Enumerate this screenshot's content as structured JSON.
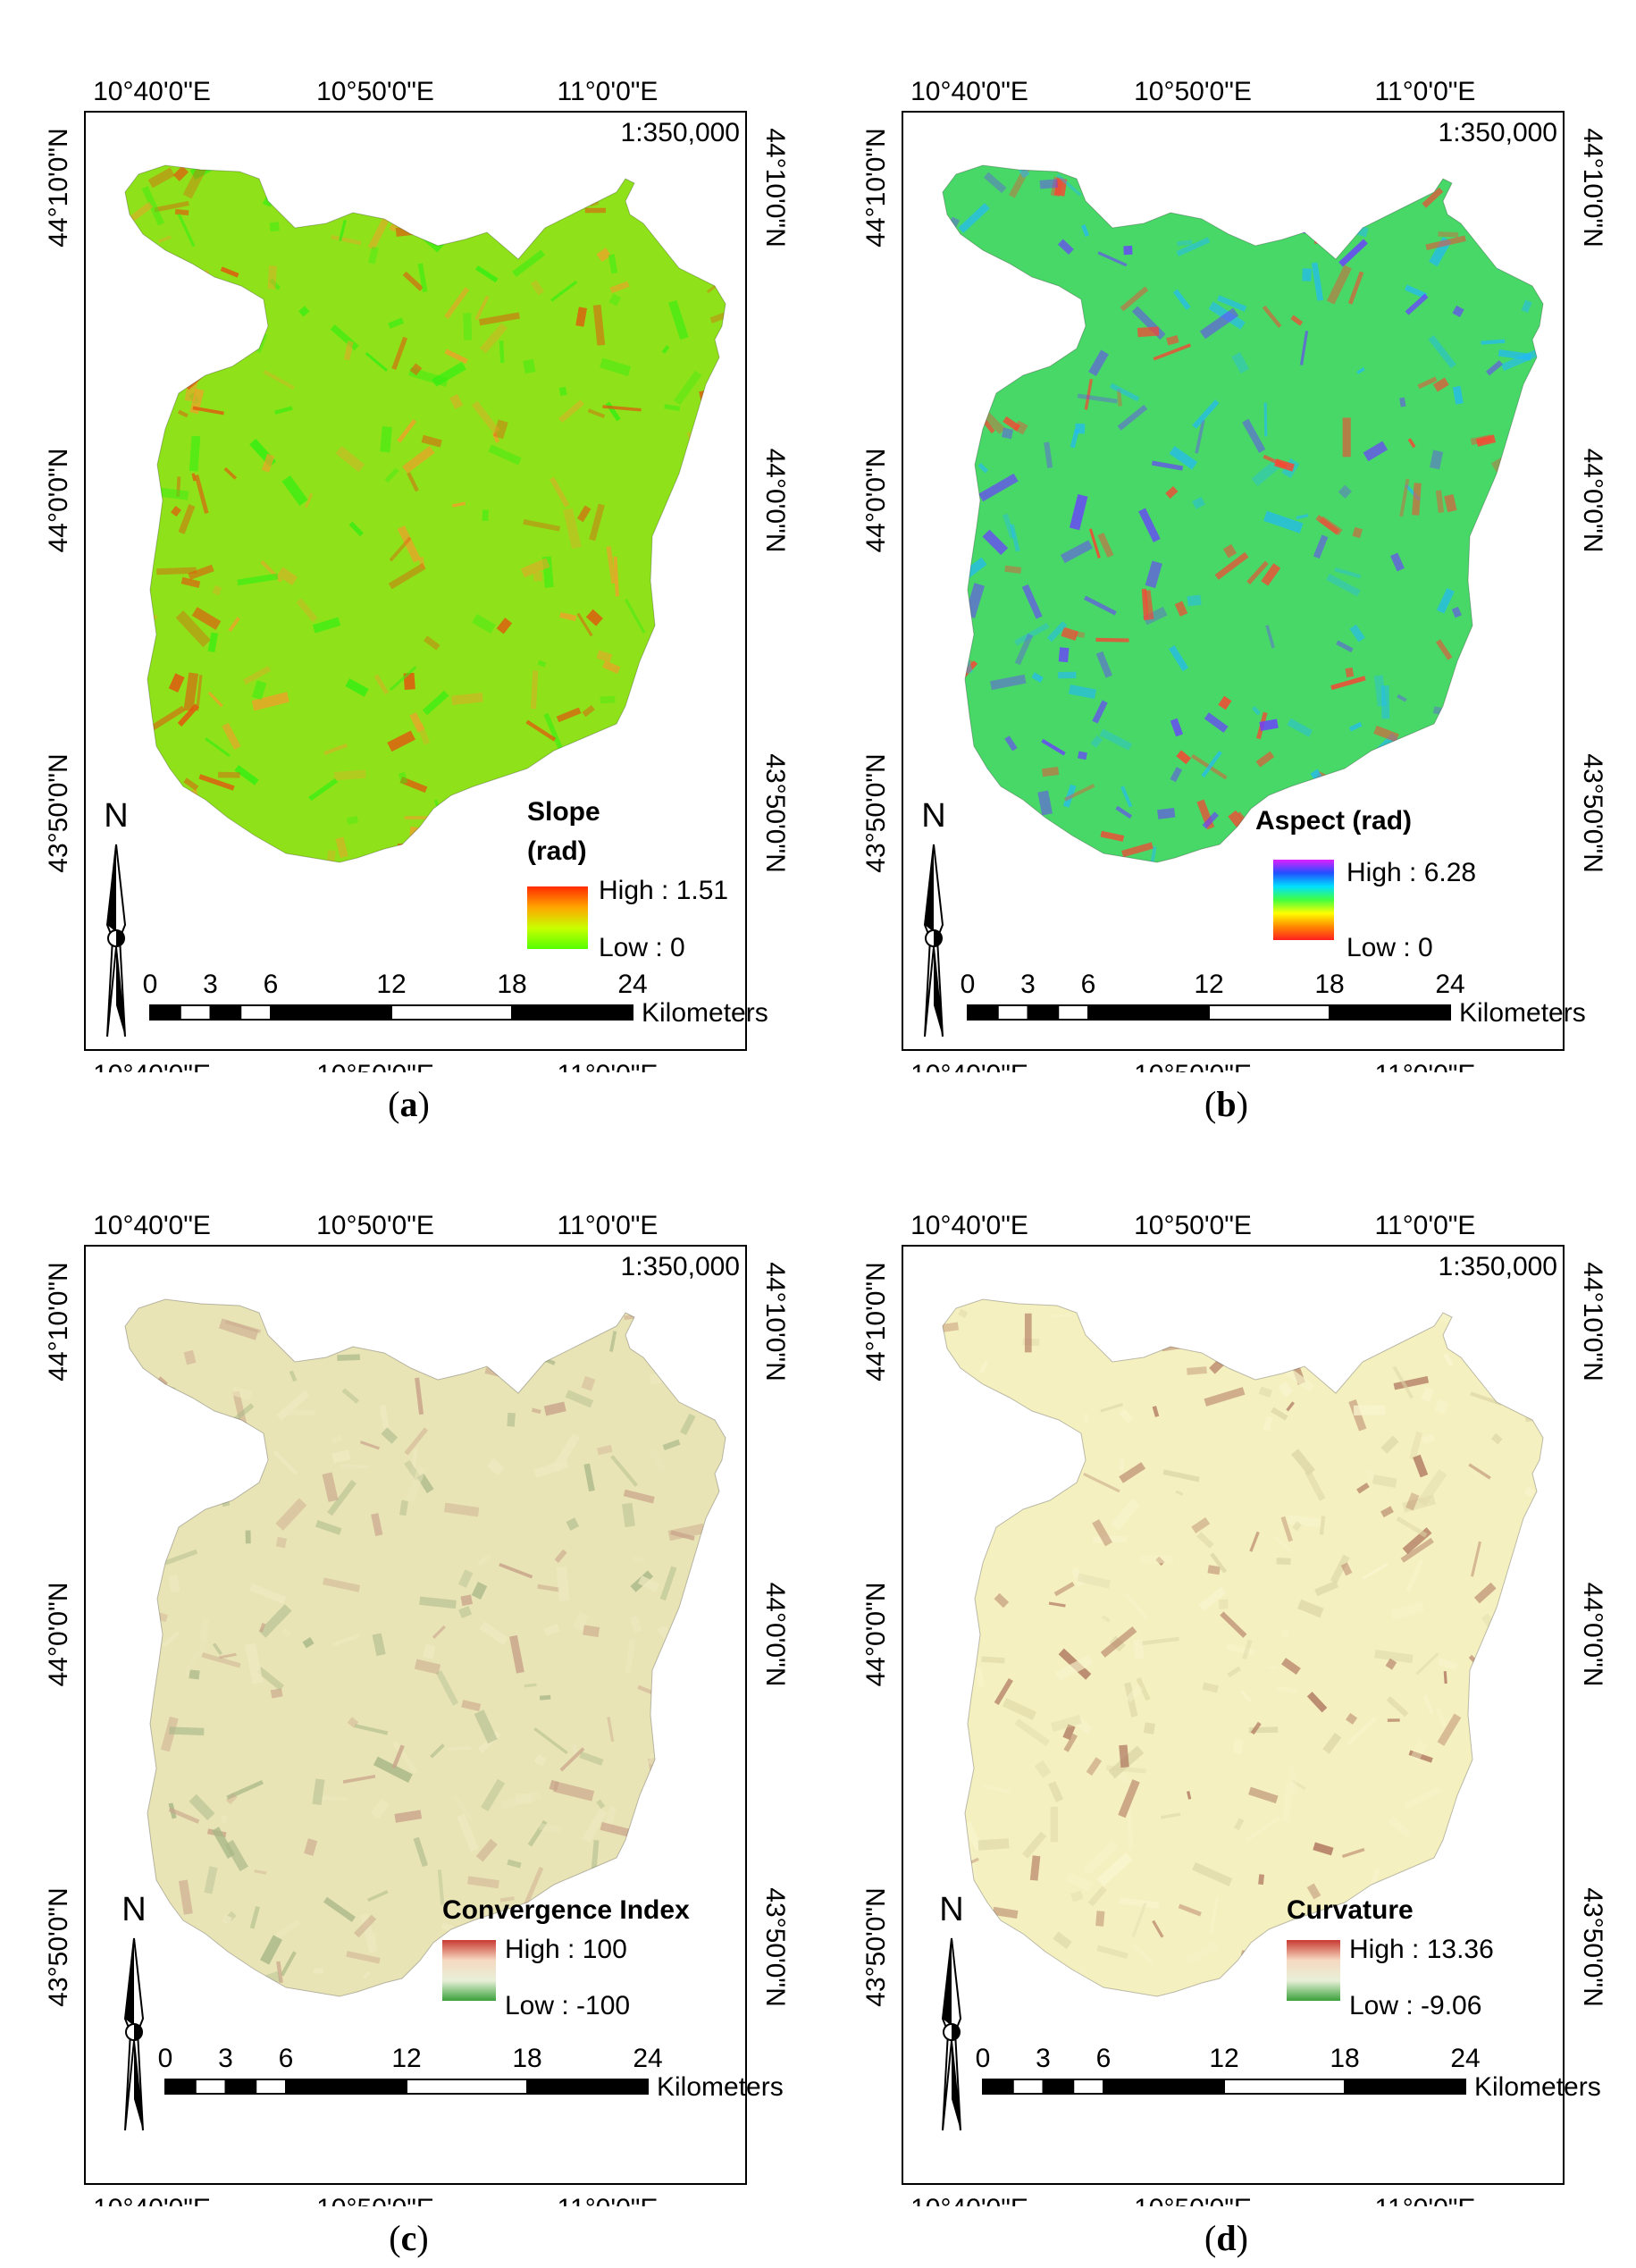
{
  "panels": [
    {
      "id": "a",
      "caption": "a",
      "scale_text": "1:350,000",
      "coords": {
        "top": [
          "10°40'0\"E",
          "10°50'0\"E",
          "11°0'0\"E"
        ],
        "bottom": [
          "10°40'0\"E",
          "10°50'0\"E",
          "11°0'0\"E"
        ],
        "left": [
          "44°10'0\"N",
          "44°0'0\"N",
          "43°50'0\"N"
        ],
        "right": [
          "44°10'0\"N",
          "44°0'0\"N",
          "43°50'0\"N"
        ]
      },
      "legend": {
        "title_line1": "Slope",
        "title_line2": "(rad)",
        "high": "High : 1.51",
        "low": "Low : 0",
        "ramp": [
          "#ff2a00",
          "#ffa500",
          "#c8ff00",
          "#55ff00"
        ]
      },
      "north": "N",
      "scalebar": {
        "ticks": [
          "0",
          "3",
          "6",
          "12",
          "18",
          "24"
        ],
        "unit": "Kilometers"
      },
      "map_colors": {
        "base": "#8fe21a",
        "accent1": "#f0a02a",
        "accent2": "#e2550e",
        "accent3": "#34ee12"
      }
    },
    {
      "id": "b",
      "caption": "b",
      "scale_text": "1:350,000",
      "coords": {
        "top": [
          "10°40'0\"E",
          "10°50'0\"E",
          "11°0'0\"E"
        ],
        "bottom": [
          "10°40'0\"E",
          "10°50'0\"E",
          "11°0'0\"E"
        ],
        "left": [
          "44°10'0\"N",
          "44°0'0\"N",
          "43°50'0\"N"
        ],
        "right": [
          "44°10'0\"N",
          "44°0'0\"N",
          "43°50'0\"N"
        ]
      },
      "legend": {
        "title_line1": "Aspect (rad)",
        "title_line2": "",
        "high": "High : 6.28",
        "low": "Low : 0",
        "ramp": [
          "#e020ff",
          "#2050ff",
          "#00e0ff",
          "#40ff40",
          "#ffff00",
          "#ff8800",
          "#ff2020"
        ]
      },
      "north": "N",
      "scalebar": {
        "ticks": [
          "0",
          "3",
          "6",
          "12",
          "18",
          "24"
        ],
        "unit": "Kilometers"
      },
      "map_colors": {
        "base": "#48d868",
        "accent1": "#ff4030",
        "accent2": "#6a40ff",
        "accent3": "#20b8ff"
      }
    },
    {
      "id": "c",
      "caption": "c",
      "scale_text": "1:350,000",
      "coords": {
        "top": [
          "10°40'0\"E",
          "10°50'0\"E",
          "11°0'0\"E"
        ],
        "bottom": [
          "10°40'0\"E",
          "10°50'0\"E",
          "11°0'0\"E"
        ],
        "left": [
          "44°10'0\"N",
          "44°0'0\"N",
          "43°50'0\"N"
        ],
        "right": [
          "44°10'0\"N",
          "44°0'0\"N",
          "43°50'0\"N"
        ]
      },
      "legend": {
        "title_line1": "Convergence Index",
        "title_line2": "",
        "high": "High : 100",
        "low": "Low : -100",
        "ramp": [
          "#c83a32",
          "#f6d8c0",
          "#e8f0d8",
          "#3aa03a"
        ]
      },
      "north": "N",
      "scalebar": {
        "ticks": [
          "0",
          "3",
          "6",
          "12",
          "18",
          "24"
        ],
        "unit": "Kilometers"
      },
      "map_colors": {
        "base": "#e9e4b6",
        "accent1": "#c9a48a",
        "accent2": "#a9b888",
        "accent3": "#eee9c0"
      }
    },
    {
      "id": "d",
      "caption": "d",
      "scale_text": "1:350,000",
      "coords": {
        "top": [
          "10°40'0\"E",
          "10°50'0\"E",
          "11°0'0\"E"
        ],
        "bottom": [
          "10°40'0\"E",
          "10°50'0\"E",
          "11°0'0\"E"
        ],
        "left": [
          "44°10'0\"N",
          "44°0'0\"N",
          "43°50'0\"N"
        ],
        "right": [
          "44°10'0\"N",
          "44°0'0\"N",
          "43°50'0\"N"
        ]
      },
      "legend": {
        "title_line1": "Curvature",
        "title_line2": "",
        "high": "High : 13.36",
        "low": "Low : -9.06",
        "ramp": [
          "#c83a32",
          "#f6d8c0",
          "#e8f0d8",
          "#3aa03a"
        ]
      },
      "north": "N",
      "scalebar": {
        "ticks": [
          "0",
          "3",
          "6",
          "12",
          "18",
          "24"
        ],
        "unit": "Kilometers"
      },
      "map_colors": {
        "base": "#f5f0c0",
        "accent1": "#b07860",
        "accent2": "#ded8a8",
        "accent3": "#f8f4cc"
      }
    }
  ]
}
